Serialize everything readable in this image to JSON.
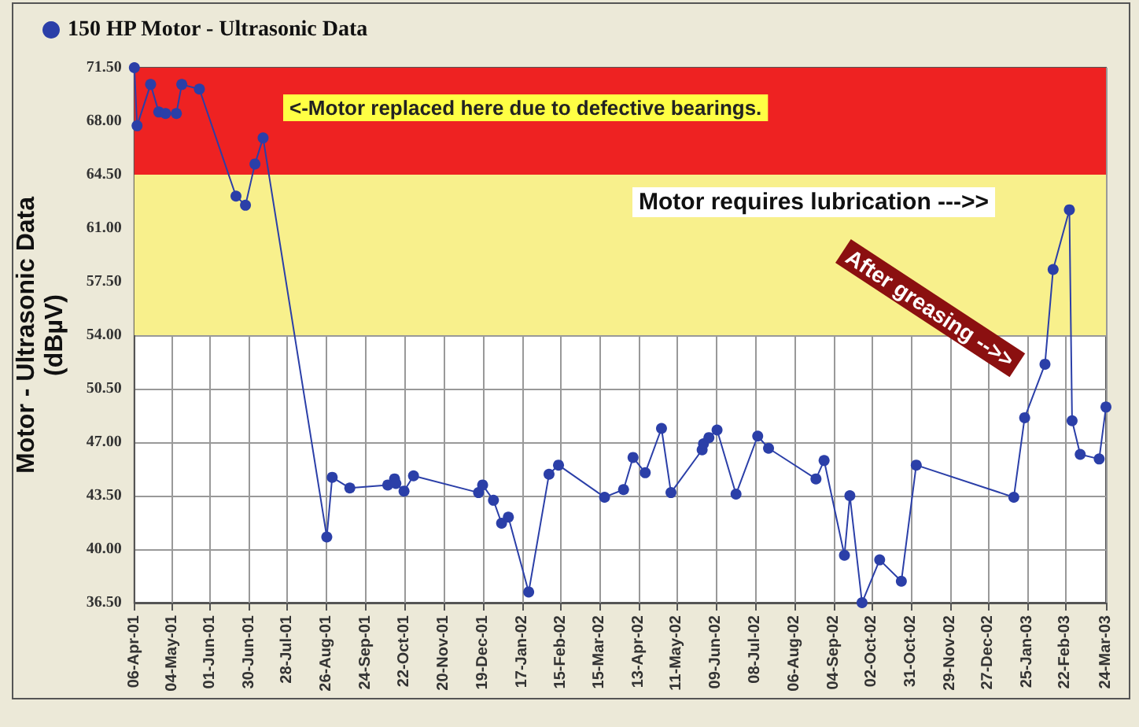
{
  "chart_data": {
    "type": "line",
    "ylabel": "Motor - Ultrasonic Data\n(dBµV)",
    "x": [
      "2001-04-06",
      "2001-04-08",
      "2001-04-18",
      "2001-04-24",
      "2001-04-29",
      "2001-05-07",
      "2001-05-11",
      "2001-05-24",
      "2001-06-20",
      "2001-06-27",
      "2001-07-04",
      "2001-07-10",
      "2001-08-26",
      "2001-08-30",
      "2001-09-12",
      "2001-10-10",
      "2001-10-15",
      "2001-10-16",
      "2001-10-22",
      "2001-10-29",
      "2001-12-16",
      "2001-12-19",
      "2001-12-27",
      "2002-01-02",
      "2002-01-07",
      "2002-01-22",
      "2002-02-06",
      "2002-02-13",
      "2002-03-19",
      "2002-04-02",
      "2002-04-09",
      "2002-04-18",
      "2002-04-30",
      "2002-05-07",
      "2002-05-30",
      "2002-05-31",
      "2002-06-04",
      "2002-06-10",
      "2002-06-24",
      "2002-07-10",
      "2002-07-18",
      "2002-08-22",
      "2002-08-28",
      "2002-09-12",
      "2002-09-16",
      "2002-09-25",
      "2002-10-08",
      "2002-10-24",
      "2002-11-04",
      "2003-01-15",
      "2003-01-23",
      "2003-02-07",
      "2003-02-13",
      "2003-02-25",
      "2003-02-27",
      "2003-03-05",
      "2003-03-19",
      "2003-03-24"
    ],
    "series": [
      {
        "name": "150 HP Motor - Ultrasonic Data",
        "color": "#2b3fa8",
        "values": [
          71.5,
          67.7,
          70.4,
          68.6,
          68.5,
          68.5,
          70.4,
          70.1,
          63.1,
          62.5,
          65.2,
          66.9,
          40.8,
          44.7,
          44.0,
          44.2,
          44.6,
          44.3,
          43.8,
          44.8,
          43.7,
          44.2,
          43.2,
          41.7,
          42.1,
          37.2,
          44.9,
          45.5,
          43.4,
          43.9,
          46.0,
          45.0,
          47.9,
          43.7,
          46.5,
          46.9,
          47.3,
          47.8,
          43.6,
          47.4,
          46.6,
          44.6,
          45.8,
          39.6,
          43.5,
          36.5,
          39.3,
          37.9,
          45.5,
          43.4,
          48.6,
          52.1,
          58.3,
          62.2,
          48.4,
          46.2,
          45.9,
          49.3
        ]
      }
    ],
    "xlim": [
      "2001-04-06",
      "2003-03-24"
    ],
    "xticks": [
      {
        "value": "2001-04-06",
        "label": "06-Apr-01"
      },
      {
        "value": "2001-05-04",
        "label": "04-May-01"
      },
      {
        "value": "2001-06-01",
        "label": "01-Jun-01"
      },
      {
        "value": "2001-06-30",
        "label": "30-Jun-01"
      },
      {
        "value": "2001-07-28",
        "label": "28-Jul-01"
      },
      {
        "value": "2001-08-26",
        "label": "26-Aug-01"
      },
      {
        "value": "2001-09-24",
        "label": "24-Sep-01"
      },
      {
        "value": "2001-10-22",
        "label": "22-Oct-01"
      },
      {
        "value": "2001-11-20",
        "label": "20-Nov-01"
      },
      {
        "value": "2001-12-19",
        "label": "19-Dec-01"
      },
      {
        "value": "2002-01-17",
        "label": "17-Jan-02"
      },
      {
        "value": "2002-02-15",
        "label": "15-Feb-02"
      },
      {
        "value": "2002-03-15",
        "label": "15-Mar-02"
      },
      {
        "value": "2002-04-13",
        "label": "13-Apr-02"
      },
      {
        "value": "2002-05-11",
        "label": "11-May-02"
      },
      {
        "value": "2002-06-09",
        "label": "09-Jun-02"
      },
      {
        "value": "2002-07-08",
        "label": "08-Jul-02"
      },
      {
        "value": "2002-08-06",
        "label": "06-Aug-02"
      },
      {
        "value": "2002-09-04",
        "label": "04-Sep-02"
      },
      {
        "value": "2002-10-02",
        "label": "02-Oct-02"
      },
      {
        "value": "2002-10-31",
        "label": "31-Oct-02"
      },
      {
        "value": "2002-11-29",
        "label": "29-Nov-02"
      },
      {
        "value": "2002-12-27",
        "label": "27-Dec-02"
      },
      {
        "value": "2003-01-25",
        "label": "25-Jan-03"
      },
      {
        "value": "2003-02-22",
        "label": "22-Feb-03"
      },
      {
        "value": "2003-03-24",
        "label": "24-Mar-03"
      }
    ],
    "ylim": [
      36.5,
      71.5
    ],
    "yticks": [
      {
        "value": 36.5,
        "label": "36.50"
      },
      {
        "value": 40,
        "label": "40.00"
      },
      {
        "value": 43.5,
        "label": "43.50"
      },
      {
        "value": 47,
        "label": "47.00"
      },
      {
        "value": 50.5,
        "label": "50.50"
      },
      {
        "value": 54,
        "label": "54.00"
      },
      {
        "value": 57.5,
        "label": "57.50"
      },
      {
        "value": 61,
        "label": "61.00"
      },
      {
        "value": 64.5,
        "label": "64.50"
      },
      {
        "value": 68,
        "label": "68.00"
      },
      {
        "value": 71.5,
        "label": "71.50"
      }
    ],
    "bands": [
      {
        "axis": "y",
        "from": 64.5,
        "to": 71.5,
        "color": "#ee2222"
      },
      {
        "axis": "y",
        "from": 54,
        "to": 64.5,
        "color": "#f8f08c"
      }
    ],
    "annotations": [
      "<-Motor replaced here due to defective bearings.",
      "Motor requires lubrication --->>",
      "After greasing -->>"
    ],
    "grid": true,
    "legend": "top left",
    "marker": "circle",
    "line_style": "solid"
  }
}
